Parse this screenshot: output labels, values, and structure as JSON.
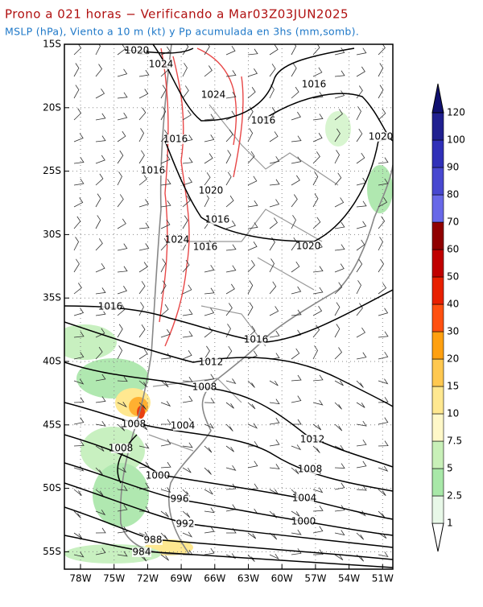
{
  "header": {
    "title": "Prono a 021 horas − Verificando a Mar03Z03JUN2025",
    "subtitle": "MSLP (hPa), Viento a 10 m (kt) y Pp acumulada en 3hs (mm,somb)."
  },
  "map": {
    "lat_labels": [
      "15S",
      "20S",
      "25S",
      "30S",
      "35S",
      "40S",
      "45S",
      "50S",
      "55S"
    ],
    "lon_labels": [
      "78W",
      "75W",
      "72W",
      "69W",
      "66W",
      "63W",
      "60W",
      "57W",
      "54W",
      "51W"
    ],
    "isobar_labels": [
      "1020",
      "1024",
      "1024",
      "1016",
      "1016",
      "1016",
      "1016",
      "1020",
      "1020",
      "1016",
      "1024",
      "1016",
      "1020",
      "1016",
      "1016",
      "1012",
      "1008",
      "1008",
      "1004",
      "1012",
      "1008",
      "1008",
      "1000",
      "1004",
      "996",
      "1000",
      "992",
      "988",
      "984"
    ]
  },
  "colorbar": {
    "labels": [
      "1",
      "2.5",
      "5",
      "7.5",
      "10",
      "15",
      "20",
      "30",
      "40",
      "50",
      "60",
      "70",
      "80",
      "90",
      "100",
      "120"
    ],
    "colors": [
      "#e8f8e8",
      "#a8e8a8",
      "#c8f0b8",
      "#fff8c8",
      "#ffe890",
      "#ffc850",
      "#ffa010",
      "#ff5010",
      "#e82000",
      "#c00000",
      "#900000",
      "#6868e8",
      "#4848d0",
      "#3030b8",
      "#202090",
      "#101070"
    ]
  }
}
